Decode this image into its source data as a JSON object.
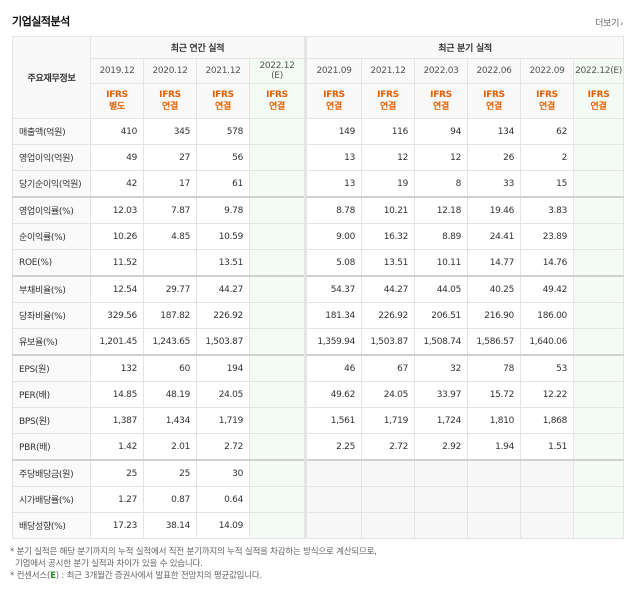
{
  "header": {
    "title": "기업실적분석",
    "more_label": "더보기",
    "more_icon": "chevron-right-icon"
  },
  "table": {
    "label_header": "주요재무정보",
    "group_annual": "최근 연간 실적",
    "group_quarter": "최근 분기 실적",
    "annual_periods": [
      "2019.12",
      "2020.12",
      "2021.12",
      "2022.12"
    ],
    "annual_est_tag": "(E)",
    "quarter_periods": [
      "2021.09",
      "2021.12",
      "2022.03",
      "2022.06",
      "2022.09",
      "2022.12"
    ],
    "quarter_est_tag": "(E)",
    "annual_types": [
      [
        "IFRS",
        "별도"
      ],
      [
        "IFRS",
        "연결"
      ],
      [
        "IFRS",
        "연결"
      ],
      [
        "IFRS",
        "연결"
      ]
    ],
    "quarter_types": [
      [
        "IFRS",
        "연결"
      ],
      [
        "IFRS",
        "연결"
      ],
      [
        "IFRS",
        "연결"
      ],
      [
        "IFRS",
        "연결"
      ],
      [
        "IFRS",
        "연결"
      ],
      [
        "IFRS",
        "연결"
      ]
    ],
    "rows": [
      {
        "label": "매출액(억원)",
        "annual": [
          "410",
          "345",
          "578",
          ""
        ],
        "quarter": [
          "149",
          "116",
          "94",
          "134",
          "62",
          ""
        ]
      },
      {
        "label": "영업이익(억원)",
        "annual": [
          "49",
          "27",
          "56",
          ""
        ],
        "quarter": [
          "13",
          "12",
          "12",
          "26",
          "2",
          ""
        ]
      },
      {
        "label": "당기순이익(억원)",
        "annual": [
          "42",
          "17",
          "61",
          ""
        ],
        "quarter": [
          "13",
          "19",
          "8",
          "33",
          "15",
          ""
        ]
      },
      {
        "label": "영업이익률(%)",
        "annual": [
          "12.03",
          "7.87",
          "9.78",
          ""
        ],
        "quarter": [
          "8.78",
          "10.21",
          "12.18",
          "19.46",
          "3.83",
          ""
        ]
      },
      {
        "label": "순이익률(%)",
        "annual": [
          "10.26",
          "4.85",
          "10.59",
          ""
        ],
        "quarter": [
          "9.00",
          "16.32",
          "8.89",
          "24.41",
          "23.89",
          ""
        ]
      },
      {
        "label": "ROE(%)",
        "annual": [
          "11.52",
          "",
          "13.51",
          ""
        ],
        "quarter": [
          "5.08",
          "13.51",
          "10.11",
          "14.77",
          "14.76",
          ""
        ]
      },
      {
        "label": "부채비율(%)",
        "annual": [
          "12.54",
          "29.77",
          "44.27",
          ""
        ],
        "quarter": [
          "54.37",
          "44.27",
          "44.05",
          "40.25",
          "49.42",
          ""
        ]
      },
      {
        "label": "당좌비율(%)",
        "annual": [
          "329.56",
          "187.82",
          "226.92",
          ""
        ],
        "quarter": [
          "181.34",
          "226.92",
          "206.51",
          "216.90",
          "186.00",
          ""
        ]
      },
      {
        "label": "유보율(%)",
        "annual": [
          "1,201.45",
          "1,243.65",
          "1,503.87",
          ""
        ],
        "quarter": [
          "1,359.94",
          "1,503.87",
          "1,508.74",
          "1,586.57",
          "1,640.06",
          ""
        ]
      },
      {
        "label": "EPS(원)",
        "annual": [
          "132",
          "60",
          "194",
          ""
        ],
        "quarter": [
          "46",
          "67",
          "32",
          "78",
          "53",
          ""
        ]
      },
      {
        "label": "PER(배)",
        "annual": [
          "14.85",
          "48.19",
          "24.05",
          ""
        ],
        "quarter": [
          "49.62",
          "24.05",
          "33.97",
          "15.72",
          "12.22",
          ""
        ]
      },
      {
        "label": "BPS(원)",
        "annual": [
          "1,387",
          "1,434",
          "1,719",
          ""
        ],
        "quarter": [
          "1,561",
          "1,719",
          "1,724",
          "1,810",
          "1,868",
          ""
        ]
      },
      {
        "label": "PBR(배)",
        "annual": [
          "1.42",
          "2.01",
          "2.72",
          ""
        ],
        "quarter": [
          "2.25",
          "2.72",
          "2.92",
          "1.94",
          "1.51",
          ""
        ]
      },
      {
        "label": "주당배당금(원)",
        "annual": [
          "25",
          "25",
          "30",
          ""
        ],
        "quarter": [
          "",
          "",
          "",
          "",
          "",
          ""
        ]
      },
      {
        "label": "시가배당률(%)",
        "annual": [
          "1.27",
          "0.87",
          "0.64",
          ""
        ],
        "quarter": [
          "",
          "",
          "",
          "",
          "",
          ""
        ]
      },
      {
        "label": "배당성향(%)",
        "annual": [
          "17.23",
          "38.14",
          "14.09",
          ""
        ],
        "quarter": [
          "",
          "",
          "",
          "",
          "",
          ""
        ]
      }
    ]
  },
  "notes": {
    "line1": "분기 실적은 해당 분기까지의 누적 실적에서 직전 분기까지의 누적 실적을 차감하는 방식으로 계산되므로,",
    "line2": "기업에서 공시한 분기 실적과 차이가 있을 수 있습니다.",
    "line3_prefix": "컨센서스(",
    "line3_em": "E",
    "line3_suffix": ") : 최근 3개월간 증권사에서 발표한 전망치의 평균값입니다."
  }
}
